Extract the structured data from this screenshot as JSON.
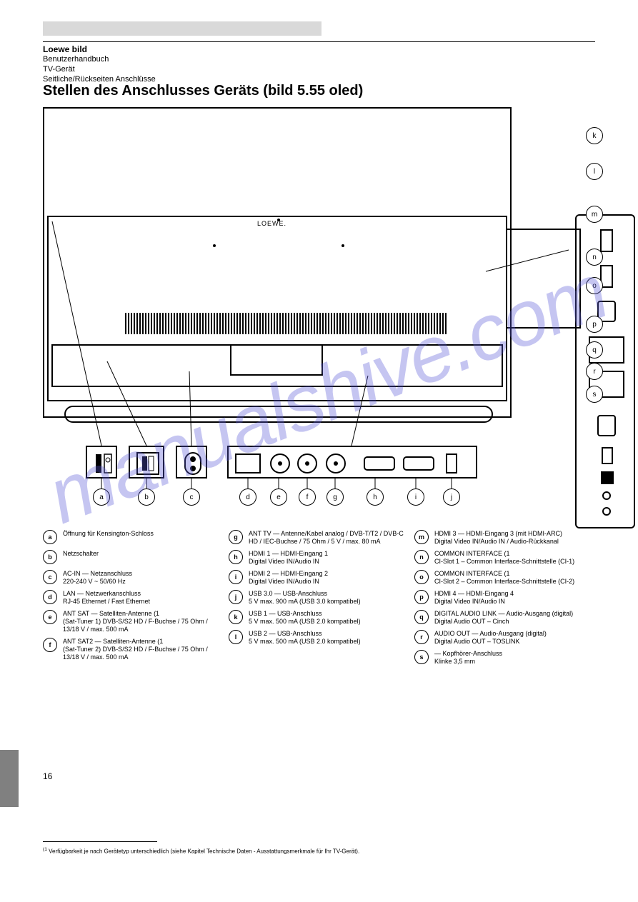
{
  "colors": {
    "background": "#ffffff",
    "line": "#000000",
    "greybar": "#d9d9d9",
    "sidetab": "#808080",
    "watermark": "#5b5bd8",
    "watermark_opacity": 0.35
  },
  "header": {
    "line1": "Loewe bild",
    "line2": "Benutzerhandbuch",
    "line3": "TV-Gerät",
    "line4": "Seitliche/Rückseiten Anschlüsse"
  },
  "section_title": "Stellen des Anschlusses Geräts (bild 5.55 oled)",
  "tv_brand": "LOEWE.",
  "watermark": "manualshive.com",
  "footnote_marker": "(1",
  "footnote_text": "Verfügbarkeit je nach Gerätetyp unterschiedlich (siehe Kapitel Technische Daten - Ausstattungsmerkmale für Ihr TV-Gerät).",
  "page_number": "16",
  "callouts": {
    "a": "a",
    "b": "b",
    "c": "c",
    "d": "d",
    "e": "e",
    "f": "f",
    "g": "g",
    "h": "h",
    "i": "i",
    "j": "j",
    "k": "k",
    "l": "l",
    "m": "m",
    "n": "n",
    "o": "o",
    "p": "p",
    "q": "q",
    "r": "r",
    "s": "s"
  },
  "legend": [
    {
      "id": "a",
      "label": "Öffnung für Kensington-Schloss",
      "col": 0
    },
    {
      "id": "b",
      "label": "Netzschalter",
      "col": 0
    },
    {
      "id": "c",
      "label": "AC-IN — Netzanschluss",
      "sub": "220-240 V ~ 50/60 Hz",
      "col": 0
    },
    {
      "id": "d",
      "label": "LAN — Netzwerkanschluss",
      "sub": "RJ-45 Ethernet / Fast Ethernet",
      "col": 0
    },
    {
      "id": "e",
      "label": "ANT SAT — Satelliten-Antenne (1",
      "sub": "(Sat-Tuner 1) DVB-S/S2 HD / F-Buchse / 75 Ohm / 13/18 V / max. 500 mA",
      "col": 0
    },
    {
      "id": "f",
      "label": "ANT SAT2 — Satelliten-Antenne (1",
      "sub": "(Sat-Tuner 2) DVB-S/S2 HD / F-Buchse / 75 Ohm / 13/18 V / max. 500 mA",
      "col": 0
    },
    {
      "id": "g",
      "label": "ANT TV — Antenne/Kabel analog / DVB-T/T2 / DVB-C HD / IEC-Buchse / 75 Ohm / 5 V / max. 80 mA",
      "col": 1
    },
    {
      "id": "h",
      "label": "HDMI 1 — HDMI-Eingang 1",
      "sub": "Digital Video IN/Audio IN",
      "col": 1
    },
    {
      "id": "i",
      "label": "HDMI 2 — HDMI-Eingang 2",
      "sub": "Digital Video IN/Audio IN",
      "col": 1
    },
    {
      "id": "j",
      "label": "USB 3.0 — USB-Anschluss",
      "sub": "5 V   max. 900 mA (USB 3.0 kompatibel)",
      "col": 1
    },
    {
      "id": "k",
      "label": "USB 1 — USB-Anschluss",
      "sub": "5 V   max. 500 mA (USB 2.0 kompatibel)",
      "col": 1
    },
    {
      "id": "l",
      "label": "USB 2 — USB-Anschluss",
      "sub": "5 V   max. 500 mA (USB 2.0 kompatibel)",
      "col": 1
    },
    {
      "id": "m",
      "label": "HDMI 3 — HDMI-Eingang 3 (mit HDMI-ARC)",
      "sub": "Digital Video IN/Audio IN / Audio-Rückkanal",
      "col": 2
    },
    {
      "id": "n",
      "label": "COMMON INTERFACE (1",
      "sub": "CI-Slot 1 – Common Interface-Schnittstelle (CI-1)",
      "col": 2
    },
    {
      "id": "o",
      "label": "COMMON INTERFACE (1",
      "sub": "CI-Slot 2 – Common Interface-Schnittstelle (CI-2)",
      "col": 2
    },
    {
      "id": "p",
      "label": "HDMI 4 — HDMI-Eingang 4",
      "sub": "Digital Video IN/Audio IN",
      "col": 2
    },
    {
      "id": "q",
      "label": "DIGITAL AUDIO LINK — Audio-Ausgang (digital)",
      "sub": "Digital Audio OUT – Cinch",
      "col": 2
    },
    {
      "id": "r",
      "label": "AUDIO OUT — Audio-Ausgang (digital)",
      "sub": "Digital Audio OUT – TOSLINK",
      "col": 2
    },
    {
      "id": "s",
      "label": "— Kopfhörer-Anschluss",
      "sub": "Klinke 3,5 mm",
      "col": 2
    }
  ]
}
